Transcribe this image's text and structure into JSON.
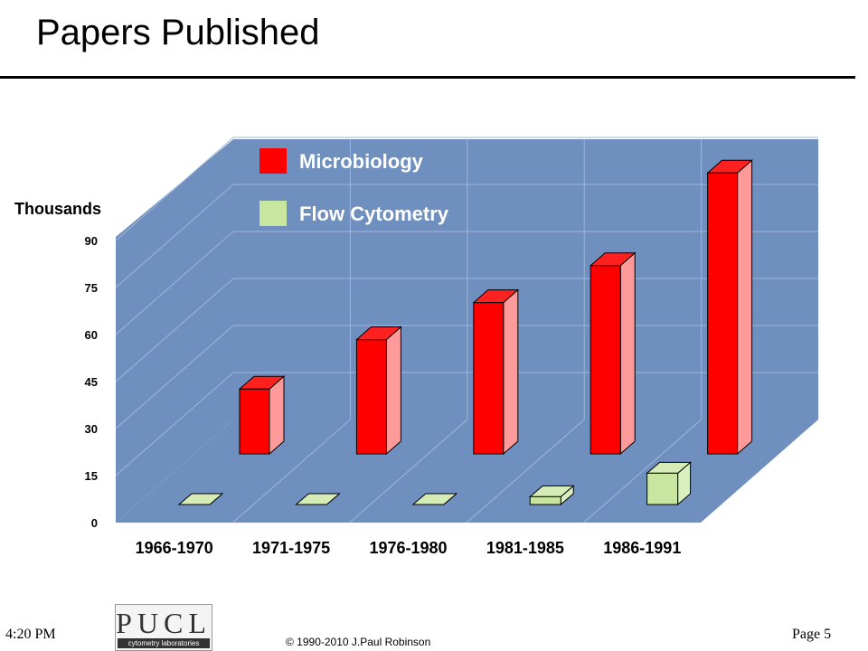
{
  "slide": {
    "title": "Papers Published",
    "time": "4:20 PM",
    "page": "Page 5",
    "copyright": "© 1990-2010  J.Paul Robinson",
    "logo": {
      "main": "PUCL",
      "sub": "cytometry laboratories"
    }
  },
  "chart_data": {
    "type": "bar",
    "title": "",
    "ylabel": "Thousands",
    "xlabel": "",
    "ylim": [
      0,
      90
    ],
    "yticks": [
      0,
      15,
      30,
      45,
      60,
      75,
      90
    ],
    "categories": [
      "1966-1970",
      "1971-1975",
      "1976-1980",
      "1981-1985",
      "1986-1991"
    ],
    "series": [
      {
        "name": "Microbiology",
        "values": [
          21,
          37,
          49,
          61,
          91
        ],
        "color": "#ff0000"
      },
      {
        "name": "Flow Cytometry",
        "values": [
          0,
          0,
          0,
          2.5,
          10
        ],
        "color": "#c8e6a0"
      }
    ],
    "grid": true,
    "legend": "top-left",
    "wall_color": "#6f8fbf"
  }
}
